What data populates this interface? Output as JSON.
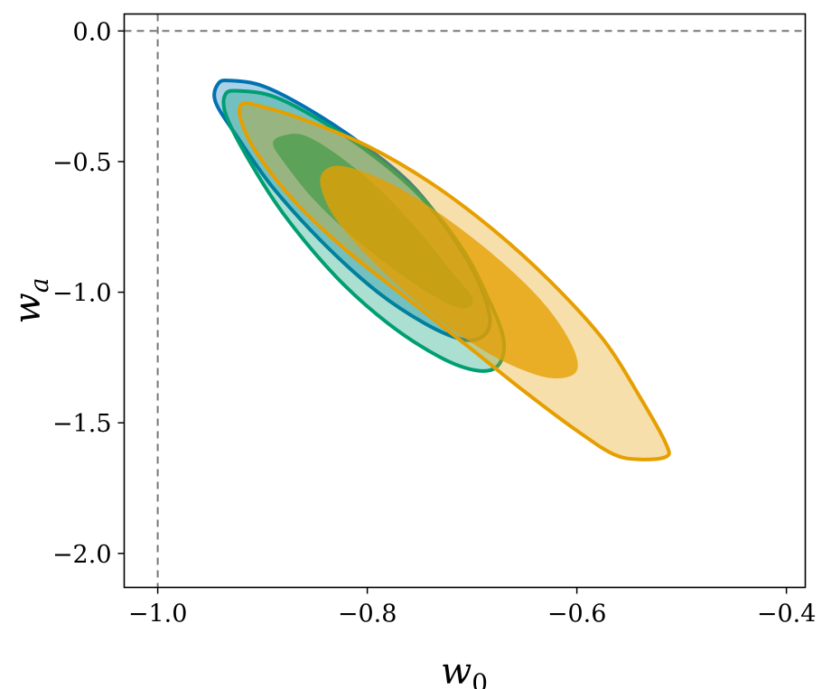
{
  "chart_data": {
    "type": "contour",
    "title": "",
    "xlabel": "w",
    "xlabel_sub": "0",
    "ylabel": "w",
    "ylabel_sub": "a",
    "xlim": [
      -1.032,
      -0.382
    ],
    "ylim": [
      -2.13,
      0.065
    ],
    "xticks": [
      -1.0,
      -0.8,
      -0.6,
      -0.4
    ],
    "xtick_labels": [
      "−1.0",
      "−0.8",
      "−0.6",
      "−0.4"
    ],
    "yticks": [
      0.0,
      -0.5,
      -1.0,
      -1.5,
      -2.0
    ],
    "ytick_labels": [
      "0.0",
      "−0.5",
      "−1.0",
      "−1.5",
      "−2.0"
    ],
    "reference_lines": {
      "w0": -1.0,
      "wa": 0.0,
      "style": "dashed",
      "color": "#777777"
    },
    "grid": false,
    "legend": "none",
    "series": [
      {
        "color": "#0072B2",
        "center": [
          -0.81,
          -0.69
        ],
        "contours": [
          {
            "level": "2-sigma",
            "points": [
              [
                -0.942,
                -0.2
              ],
              [
                -0.93,
                -0.19
              ],
              [
                -0.9,
                -0.21
              ],
              [
                -0.86,
                -0.29
              ],
              [
                -0.81,
                -0.42
              ],
              [
                -0.76,
                -0.58
              ],
              [
                -0.72,
                -0.78
              ],
              [
                -0.695,
                -0.95
              ],
              [
                -0.683,
                -1.1
              ],
              [
                -0.69,
                -1.17
              ],
              [
                -0.71,
                -1.18
              ],
              [
                -0.745,
                -1.12
              ],
              [
                -0.79,
                -1.0
              ],
              [
                -0.84,
                -0.82
              ],
              [
                -0.89,
                -0.6
              ],
              [
                -0.925,
                -0.4
              ],
              [
                -0.945,
                -0.27
              ]
            ]
          }
        ]
      },
      {
        "color": "#009E73",
        "center": [
          -0.8,
          -0.76
        ],
        "contours": [
          {
            "level": "2-sigma",
            "points": [
              [
                -0.935,
                -0.24
              ],
              [
                -0.92,
                -0.23
              ],
              [
                -0.89,
                -0.25
              ],
              [
                -0.85,
                -0.33
              ],
              [
                -0.8,
                -0.46
              ],
              [
                -0.75,
                -0.63
              ],
              [
                -0.71,
                -0.83
              ],
              [
                -0.685,
                -1.02
              ],
              [
                -0.67,
                -1.18
              ],
              [
                -0.675,
                -1.28
              ],
              [
                -0.695,
                -1.3
              ],
              [
                -0.73,
                -1.25
              ],
              [
                -0.78,
                -1.12
              ],
              [
                -0.83,
                -0.94
              ],
              [
                -0.88,
                -0.7
              ],
              [
                -0.915,
                -0.48
              ],
              [
                -0.935,
                -0.32
              ]
            ]
          },
          {
            "level": "1-sigma",
            "points": [
              [
                -0.88,
                -0.4
              ],
              [
                -0.86,
                -0.4
              ],
              [
                -0.83,
                -0.47
              ],
              [
                -0.79,
                -0.6
              ],
              [
                -0.75,
                -0.77
              ],
              [
                -0.72,
                -0.92
              ],
              [
                -0.7,
                -1.02
              ],
              [
                -0.705,
                -1.06
              ],
              [
                -0.725,
                -1.04
              ],
              [
                -0.765,
                -0.94
              ],
              [
                -0.81,
                -0.8
              ],
              [
                -0.85,
                -0.65
              ],
              [
                -0.88,
                -0.5
              ],
              [
                -0.89,
                -0.43
              ]
            ]
          }
        ]
      },
      {
        "color": "#E69F00",
        "center": [
          -0.73,
          -0.96
        ],
        "contours": [
          {
            "level": "2-sigma",
            "points": [
              [
                -0.92,
                -0.28
              ],
              [
                -0.9,
                -0.29
              ],
              [
                -0.86,
                -0.34
              ],
              [
                -0.8,
                -0.44
              ],
              [
                -0.74,
                -0.58
              ],
              [
                -0.68,
                -0.76
              ],
              [
                -0.625,
                -0.96
              ],
              [
                -0.575,
                -1.18
              ],
              [
                -0.54,
                -1.4
              ],
              [
                -0.515,
                -1.58
              ],
              [
                -0.515,
                -1.63
              ],
              [
                -0.54,
                -1.64
              ],
              [
                -0.565,
                -1.62
              ],
              [
                -0.6,
                -1.53
              ],
              [
                -0.65,
                -1.38
              ],
              [
                -0.7,
                -1.22
              ],
              [
                -0.76,
                -1.03
              ],
              [
                -0.82,
                -0.84
              ],
              [
                -0.87,
                -0.65
              ],
              [
                -0.905,
                -0.47
              ],
              [
                -0.92,
                -0.35
              ]
            ]
          },
          {
            "level": "1-sigma",
            "points": [
              [
                -0.835,
                -0.52
              ],
              [
                -0.81,
                -0.53
              ],
              [
                -0.77,
                -0.6
              ],
              [
                -0.72,
                -0.73
              ],
              [
                -0.67,
                -0.89
              ],
              [
                -0.63,
                -1.05
              ],
              [
                -0.605,
                -1.2
              ],
              [
                -0.6,
                -1.3
              ],
              [
                -0.62,
                -1.33
              ],
              [
                -0.65,
                -1.3
              ],
              [
                -0.69,
                -1.22
              ],
              [
                -0.74,
                -1.08
              ],
              [
                -0.79,
                -0.9
              ],
              [
                -0.83,
                -0.72
              ],
              [
                -0.845,
                -0.58
              ]
            ]
          }
        ]
      }
    ]
  }
}
